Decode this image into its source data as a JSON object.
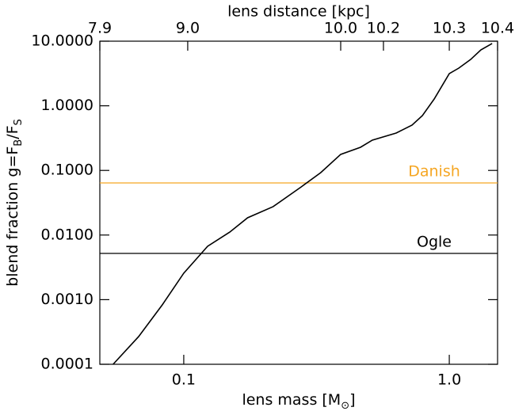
{
  "chart_data": {
    "type": "line",
    "xlabel_parts": [
      {
        "text": "lens mass [M"
      },
      {
        "text": "⊙",
        "sub": true
      },
      {
        "text": "]"
      }
    ],
    "ylabel_parts": [
      {
        "text": "blend fraction g=F"
      },
      {
        "text": "B",
        "sub": true
      },
      {
        "text": "/F"
      },
      {
        "text": "S",
        "sub": true
      }
    ],
    "xlog": true,
    "ylog": true,
    "xlim": [
      0.0483,
      1.52
    ],
    "ylim": [
      0.0001,
      10
    ],
    "xticks": [
      0.1,
      {
        "value": 1,
        "label": "1.0"
      }
    ],
    "yticks": [
      {
        "value": 10,
        "label": "10.0000"
      },
      {
        "value": 1,
        "label": "1.0000"
      },
      {
        "value": 0.1,
        "label": "0.1000"
      },
      {
        "value": 0.01,
        "label": "0.0100"
      },
      {
        "value": 0.001,
        "label": "0.0010"
      },
      {
        "value": 0.0001,
        "label": "0.0001"
      }
    ],
    "top_axis": {
      "label": "lens distance [kpc]",
      "ticks": [
        7.9,
        {
          "value": 9,
          "label": "9.0"
        },
        {
          "value": 10,
          "label": "10.0"
        },
        10.2,
        10.3,
        10.4
      ],
      "tick_mass": [
        0.0483,
        0.1035,
        0.39,
        0.565,
        1.0,
        1.52
      ]
    },
    "series": [
      {
        "color": "#000000",
        "x": [
          0.0542,
          0.0676,
          0.083,
          0.1,
          0.123,
          0.149,
          0.174,
          0.217,
          0.277,
          0.328,
          0.39,
          0.463,
          0.513,
          0.631,
          0.724,
          0.792,
          0.877,
          1.0,
          1.086,
          1.204,
          1.315,
          1.45
        ],
        "values": [
          0.0001,
          0.000268,
          0.00083,
          0.00257,
          0.0067,
          0.0111,
          0.0185,
          0.0275,
          0.0556,
          0.0925,
          0.177,
          0.228,
          0.294,
          0.379,
          0.502,
          0.705,
          1.27,
          3.15,
          3.83,
          5.22,
          7.33,
          9.2
        ]
      }
    ],
    "hlines": [
      {
        "label": "Danish",
        "value": 0.064,
        "color": "#f5a623"
      },
      {
        "label": "Ogle",
        "value": 0.0052,
        "color": "#000000"
      }
    ]
  }
}
